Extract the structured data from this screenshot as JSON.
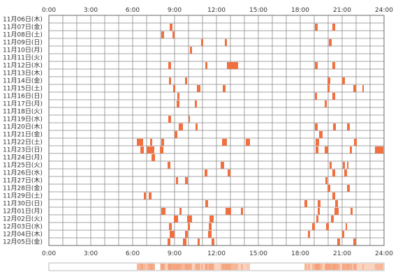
{
  "chart_data": {
    "type": "heatmap",
    "x_unit": "hours",
    "xlim": [
      0,
      24
    ],
    "x_ticks": [
      "0:00",
      "3:00",
      "6:00",
      "9:00",
      "12:00",
      "15:00",
      "18:00",
      "21:00",
      "24:00"
    ],
    "grid": true,
    "colors": {
      "mark": "#f07040",
      "mark_light": "#fbd3bd",
      "grid": "#888888",
      "summary_band": "#f4a07a"
    },
    "rows": [
      {
        "date": "11月06日(木)",
        "blocks": []
      },
      {
        "date": "11月07日(金)",
        "blocks": [
          [
            8.65,
            0.2
          ],
          [
            19.05,
            0.2
          ],
          [
            20.3,
            0.2
          ]
        ]
      },
      {
        "date": "11月08日(土)",
        "blocks": [
          [
            8.05,
            0.2
          ],
          [
            8.85,
            0.15
          ]
        ]
      },
      {
        "date": "11月09日(日)",
        "blocks": [
          [
            10.9,
            0.15
          ],
          [
            12.6,
            0.15
          ],
          [
            20.05,
            0.2
          ]
        ]
      },
      {
        "date": "11月10日(月)",
        "blocks": [
          [
            10.1,
            0.15
          ]
        ]
      },
      {
        "date": "11月11日(火)",
        "blocks": []
      },
      {
        "date": "11月12日(水)",
        "blocks": [
          [
            8.55,
            0.2
          ],
          [
            11.2,
            0.15
          ],
          [
            12.75,
            0.8
          ],
          [
            19.05,
            0.2
          ],
          [
            20.3,
            0.2
          ]
        ]
      },
      {
        "date": "11月13日(木)",
        "blocks": []
      },
      {
        "date": "11月14日(金)",
        "blocks": [
          [
            8.6,
            0.15
          ],
          [
            9.75,
            0.15
          ],
          [
            19.95,
            0.2
          ],
          [
            21.0,
            0.2
          ]
        ]
      },
      {
        "date": "11月15日(土)",
        "blocks": [
          [
            8.9,
            0.15
          ],
          [
            10.6,
            0.25
          ],
          [
            12.45,
            0.2
          ],
          [
            19.95,
            0.15
          ],
          [
            21.8,
            0.2
          ],
          [
            22.45,
            0.1
          ]
        ]
      },
      {
        "date": "11月16日(日)",
        "blocks": [
          [
            9.2,
            0.15
          ],
          [
            19.05,
            0.15
          ],
          [
            20.3,
            0.2
          ]
        ]
      },
      {
        "date": "11月17日(月)",
        "blocks": [
          [
            9.15,
            0.2
          ],
          [
            10.45,
            0.15
          ],
          [
            19.75,
            0.15
          ]
        ]
      },
      {
        "date": "11月18日(火)",
        "blocks": []
      },
      {
        "date": "11月19日(水)",
        "blocks": [
          [
            8.55,
            0.2
          ],
          [
            10.0,
            0.1
          ]
        ]
      },
      {
        "date": "11月20日(木)",
        "blocks": [
          [
            9.3,
            0.3
          ],
          [
            10.5,
            0.15
          ],
          [
            19.05,
            0.2
          ],
          [
            20.35,
            0.2
          ],
          [
            21.35,
            0.2
          ]
        ]
      },
      {
        "date": "11月21日(金)",
        "blocks": [
          [
            9.0,
            0.2
          ],
          [
            19.35,
            0.25
          ]
        ]
      },
      {
        "date": "11月22日(土)",
        "blocks": [
          [
            6.3,
            0.45
          ],
          [
            7.25,
            0.15
          ],
          [
            8.05,
            0.2
          ],
          [
            12.4,
            0.35
          ],
          [
            14.1,
            0.3
          ],
          [
            19.1,
            0.25
          ],
          [
            21.85,
            0.2
          ]
        ]
      },
      {
        "date": "11月23日(日)",
        "blocks": [
          [
            6.55,
            0.25
          ],
          [
            7.0,
            0.55
          ],
          [
            7.95,
            0.25
          ],
          [
            19.1,
            0.2
          ],
          [
            19.75,
            0.25
          ],
          [
            21.55,
            0.15
          ],
          [
            23.35,
            0.6
          ]
        ]
      },
      {
        "date": "11月24日(月)",
        "blocks": [
          [
            7.35,
            0.25
          ]
        ]
      },
      {
        "date": "11月25日(火)",
        "blocks": [
          [
            8.5,
            0.2
          ],
          [
            12.3,
            0.25
          ],
          [
            20.1,
            0.15
          ],
          [
            21.05,
            0.15
          ],
          [
            21.35,
            0.1
          ]
        ]
      },
      {
        "date": "11月26日(水)",
        "blocks": [
          [
            11.15,
            0.2
          ],
          [
            12.8,
            0.2
          ],
          [
            20.3,
            0.2
          ],
          [
            21.15,
            0.2
          ]
        ]
      },
      {
        "date": "11月27日(木)",
        "blocks": [
          [
            9.1,
            0.15
          ],
          [
            9.75,
            0.2
          ],
          [
            19.8,
            0.15
          ]
        ]
      },
      {
        "date": "11月28日(金)",
        "blocks": [
          [
            19.95,
            0.2
          ],
          [
            21.35,
            0.2
          ]
        ]
      },
      {
        "date": "11月29日(土)",
        "blocks": [
          [
            6.8,
            0.15
          ],
          [
            7.15,
            0.2
          ],
          [
            20.3,
            0.2
          ]
        ]
      },
      {
        "date": "11月30日(日)",
        "blocks": [
          [
            11.2,
            0.2
          ],
          [
            18.3,
            0.2
          ],
          [
            19.25,
            0.2
          ],
          [
            20.5,
            0.2
          ]
        ]
      },
      {
        "date": "12月01日(月)",
        "blocks": [
          [
            8.05,
            0.3
          ],
          [
            9.35,
            0.15
          ],
          [
            12.65,
            0.4
          ],
          [
            13.75,
            0.15
          ],
          [
            19.25,
            0.15
          ],
          [
            20.45,
            0.3
          ],
          [
            21.6,
            0.15
          ]
        ]
      },
      {
        "date": "12月02日(火)",
        "blocks": [
          [
            8.95,
            0.3
          ],
          [
            9.9,
            0.35
          ],
          [
            11.5,
            0.3
          ],
          [
            19.15,
            0.15
          ],
          [
            20.2,
            0.2
          ]
        ]
      },
      {
        "date": "12月03日(水)",
        "blocks": [
          [
            8.6,
            0.2
          ],
          [
            9.95,
            0.15
          ],
          [
            11.45,
            0.2
          ],
          [
            18.85,
            0.2
          ],
          [
            19.85,
            0.2
          ],
          [
            21.25,
            0.1
          ]
        ]
      },
      {
        "date": "12月04日(木)",
        "blocks": [
          [
            8.65,
            0.35
          ],
          [
            9.75,
            0.2
          ],
          [
            11.4,
            0.25
          ],
          [
            18.55,
            0.15
          ],
          [
            21.0,
            0.15
          ]
        ]
      },
      {
        "date": "12月05日(金)",
        "blocks": [
          [
            8.5,
            0.2
          ],
          [
            9.6,
            0.25
          ],
          [
            10.65,
            0.15
          ],
          [
            11.65,
            0.2
          ],
          [
            20.65,
            0.2
          ],
          [
            21.8,
            0.2
          ]
        ]
      }
    ],
    "summary_band": [
      [
        6.3,
        7.6
      ],
      [
        8.0,
        14.1
      ],
      [
        18.3,
        23.95
      ]
    ]
  }
}
